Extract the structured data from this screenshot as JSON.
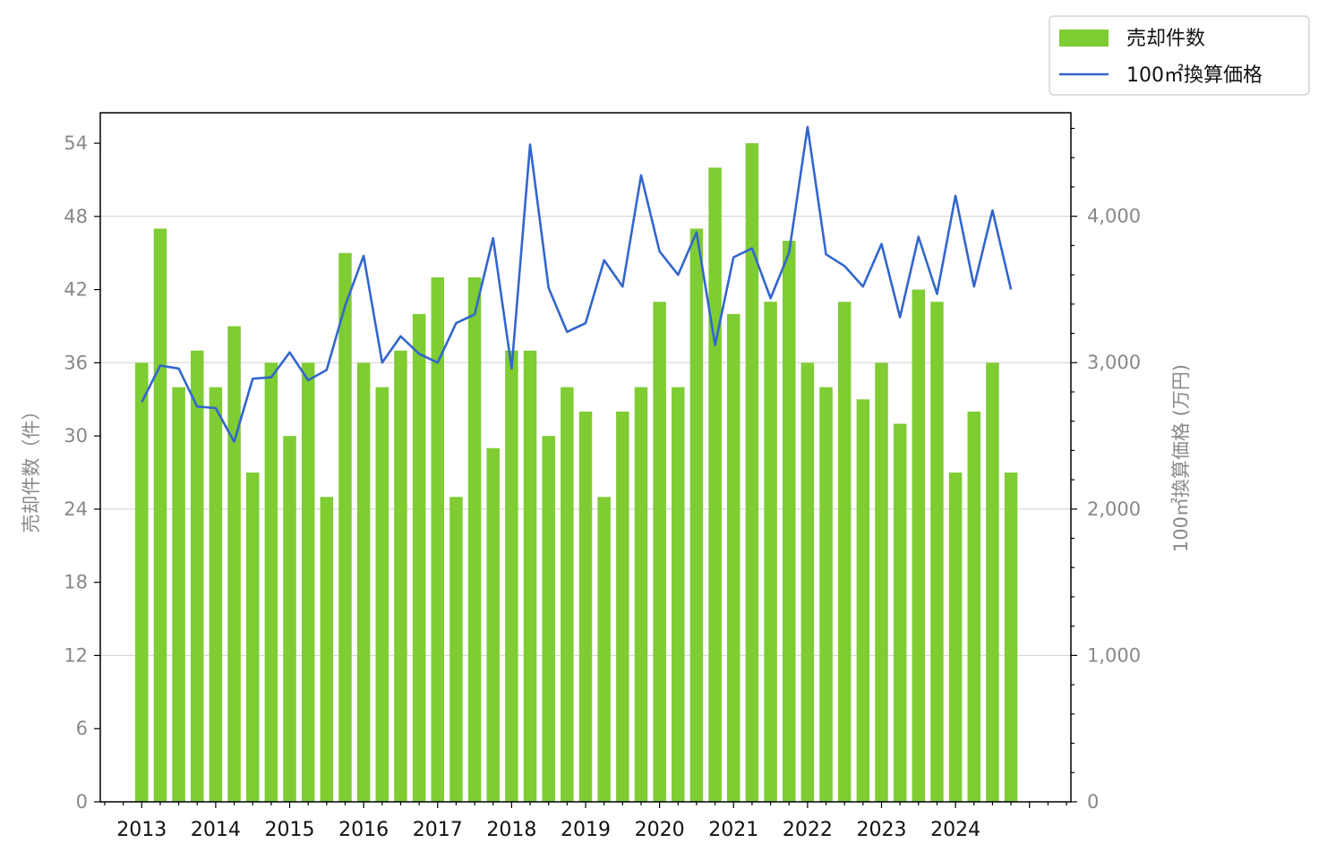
{
  "chart_data": {
    "type": "bar",
    "x_tick_labels": [
      "2013",
      "2014",
      "2015",
      "2016",
      "2017",
      "2018",
      "2019",
      "2020",
      "2021",
      "2022",
      "2023",
      "2024"
    ],
    "x_tick_years": [
      2013,
      2014,
      2015,
      2016,
      2017,
      2018,
      2019,
      2020,
      2021,
      2022,
      2023,
      2024
    ],
    "x": [
      2013.0,
      2013.25,
      2013.5,
      2013.75,
      2014.0,
      2014.25,
      2014.5,
      2014.75,
      2015.0,
      2015.25,
      2015.5,
      2015.75,
      2016.0,
      2016.25,
      2016.5,
      2016.75,
      2017.0,
      2017.25,
      2017.5,
      2017.75,
      2018.0,
      2018.25,
      2018.5,
      2018.75,
      2019.0,
      2019.25,
      2019.5,
      2019.75,
      2020.0,
      2020.25,
      2020.5,
      2020.75,
      2021.0,
      2021.25,
      2021.5,
      2021.75,
      2022.0,
      2022.25,
      2022.5,
      2022.75,
      2023.0,
      2023.25,
      2023.5,
      2023.75,
      2024.0,
      2024.25,
      2024.5,
      2024.75
    ],
    "xlim": [
      2012.44,
      2025.56
    ],
    "series": [
      {
        "name": "売却件数",
        "type": "bar",
        "axis": "left",
        "color": "#7fcc33",
        "values": [
          36,
          47,
          34,
          37,
          34,
          39,
          27,
          36,
          30,
          36,
          25,
          45,
          36,
          34,
          37,
          40,
          43,
          25,
          43,
          29,
          37,
          37,
          30,
          34,
          32,
          25,
          32,
          34,
          41,
          34,
          47,
          52,
          40,
          54,
          41,
          46,
          36,
          34,
          41,
          33,
          36,
          31,
          42,
          41,
          27,
          32,
          36,
          27
        ]
      },
      {
        "name": "100㎡換算価格",
        "type": "line",
        "axis": "right",
        "color": "#3366cc",
        "values": [
          2730,
          2980,
          2960,
          2700,
          2690,
          2460,
          2890,
          2900,
          3070,
          2880,
          2950,
          3390,
          3730,
          3000,
          3180,
          3060,
          3000,
          3270,
          3330,
          3850,
          2960,
          4490,
          3510,
          3210,
          3270,
          3700,
          3520,
          4280,
          3760,
          3600,
          3890,
          3120,
          3720,
          3780,
          3440,
          3750,
          4610,
          3740,
          3660,
          3520,
          3810,
          3310,
          3860,
          3470,
          4140,
          3520,
          4040,
          3500
        ]
      }
    ],
    "y_left": {
      "label": "売却件数（件）",
      "lim": [
        0,
        56.5
      ],
      "ticks": [
        0,
        6,
        12,
        18,
        24,
        30,
        36,
        42,
        48,
        54
      ],
      "tick_labels": [
        "0",
        "6",
        "12",
        "18",
        "24",
        "30",
        "36",
        "42",
        "48",
        "54"
      ]
    },
    "y_right": {
      "label": "100㎡換算価格 (万円)",
      "lim": [
        0,
        4707
      ],
      "ticks": [
        0,
        1000,
        2000,
        3000,
        4000
      ],
      "tick_labels": [
        "0",
        "1,000",
        "2,000",
        "3,000",
        "4,000"
      ],
      "minor_step": 200
    },
    "grid": "horizontal",
    "legend_position": "top-right, outside plot"
  }
}
